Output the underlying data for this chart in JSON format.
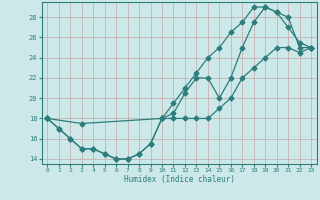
{
  "xlabel": "Humidex (Indice chaleur)",
  "background_color": "#cce8e8",
  "grid_color": "#b0d4d4",
  "line_color": "#2d7d7d",
  "xlim": [
    -0.5,
    23.5
  ],
  "ylim": [
    13.5,
    29.5
  ],
  "xticks": [
    0,
    1,
    2,
    3,
    4,
    5,
    6,
    7,
    8,
    9,
    10,
    11,
    12,
    13,
    14,
    15,
    16,
    17,
    18,
    19,
    20,
    21,
    22,
    23
  ],
  "yticks": [
    14,
    16,
    18,
    20,
    22,
    24,
    26,
    28
  ],
  "line1_x": [
    0,
    1,
    2,
    3,
    4,
    5,
    6,
    7,
    8,
    9,
    10,
    11,
    12,
    13,
    14,
    15,
    16,
    17,
    18,
    19,
    20,
    21,
    22,
    23
  ],
  "line1_y": [
    18,
    17,
    16,
    15,
    15,
    14.5,
    14,
    14,
    14.5,
    15.5,
    18,
    18.5,
    20.5,
    22,
    22,
    20,
    22,
    25,
    27.5,
    29,
    28.5,
    28,
    25,
    25
  ],
  "line2_x": [
    0,
    1,
    2,
    3,
    4,
    5,
    6,
    7,
    8,
    9,
    10,
    11,
    12,
    13,
    14,
    15,
    16,
    17,
    18,
    19,
    20,
    21,
    22,
    23
  ],
  "line2_y": [
    18,
    17,
    16,
    15,
    15,
    14.5,
    14,
    14,
    14.5,
    15.5,
    18,
    18,
    18,
    18,
    18,
    19,
    20,
    22,
    23,
    24,
    25,
    25,
    24.5,
    25
  ],
  "line3_x": [
    0,
    3,
    10,
    11,
    12,
    13,
    14,
    15,
    16,
    17,
    18,
    19,
    20,
    21,
    22,
    23
  ],
  "line3_y": [
    18,
    17.5,
    18,
    19.5,
    21,
    22.5,
    24,
    25,
    26.5,
    27.5,
    29,
    29,
    28.5,
    27,
    25.5,
    25
  ]
}
